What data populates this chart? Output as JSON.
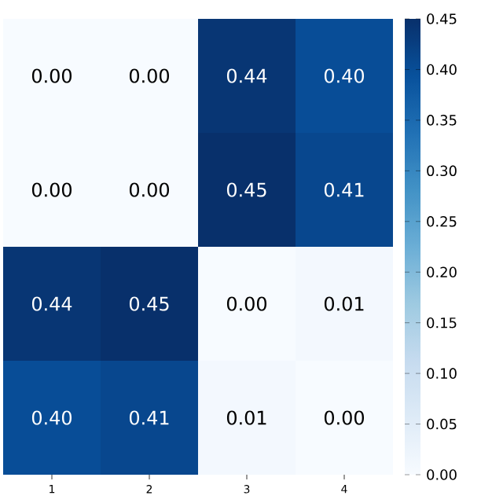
{
  "chart_data": {
    "type": "heatmap",
    "categories": [
      "1",
      "2",
      "3",
      "4"
    ],
    "y_categories": [
      null,
      null,
      null,
      null
    ],
    "cells": [
      [
        0.0,
        0.0,
        0.44,
        0.4
      ],
      [
        0.0,
        0.0,
        0.45,
        0.41
      ],
      [
        0.44,
        0.45,
        0.0,
        0.01
      ],
      [
        0.4,
        0.41,
        0.01,
        0.0
      ]
    ],
    "cell_labels": [
      [
        "0.00",
        "0.00",
        "0.44",
        "0.40"
      ],
      [
        "0.00",
        "0.00",
        "0.45",
        "0.41"
      ],
      [
        "0.44",
        "0.45",
        "0.00",
        "0.01"
      ],
      [
        "0.40",
        "0.41",
        "0.01",
        "0.00"
      ]
    ],
    "clim": [
      0,
      0.45
    ],
    "cticks": [
      {
        "value": 0,
        "label": "0.00"
      },
      {
        "value": 0.05,
        "label": "0.05"
      },
      {
        "value": 0.1,
        "label": "0.10"
      },
      {
        "value": 0.15,
        "label": "0.15"
      },
      {
        "value": 0.2,
        "label": "0.20"
      },
      {
        "value": 0.25,
        "label": "0.25"
      },
      {
        "value": 0.3,
        "label": "0.30"
      },
      {
        "value": 0.35,
        "label": "0.35"
      },
      {
        "value": 0.4,
        "label": "0.40"
      },
      {
        "value": 0.45,
        "label": "0.45"
      }
    ]
  }
}
